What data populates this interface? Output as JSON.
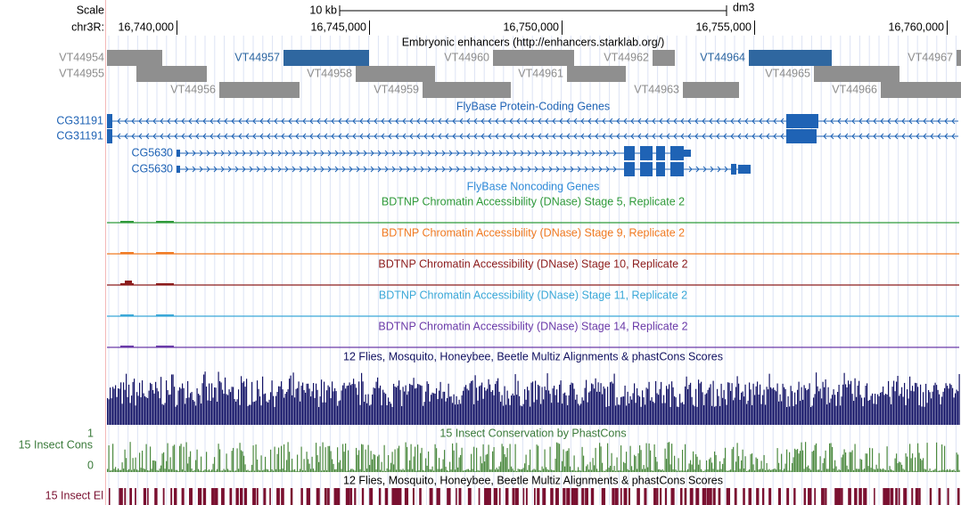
{
  "scale": {
    "label": "Scale",
    "bar_label": "10 kb",
    "assembly": "dm3"
  },
  "position": {
    "chrom": "chr3R:",
    "ticks": [
      "16,740,000",
      "16,745,000",
      "16,750,000",
      "16,755,000",
      "16,760,000"
    ]
  },
  "tracks": {
    "enhancers": {
      "title": "Embryonic enhancers (http://enhancers.starklab.org/)",
      "items": [
        "VT44954",
        "VT44957",
        "VT44960",
        "VT44962",
        "VT44964",
        "VT44967",
        "VT44955",
        "VT44958",
        "VT44961",
        "VT44965",
        "VT44956",
        "VT44959",
        "VT44963",
        "VT44966"
      ]
    },
    "genes": {
      "title": "FlyBase Protein-Coding Genes",
      "items": [
        "CG31191",
        "CG31191",
        "CG5630",
        "CG5630"
      ]
    },
    "noncoding": {
      "title": "FlyBase Noncoding Genes"
    },
    "dnase": [
      {
        "title": "BDTNP Chromatin Accessibility (DNase) Stage 5, Replicate 2",
        "color": "#2f9a3a"
      },
      {
        "title": "BDTNP Chromatin Accessibility (DNase) Stage 9, Replicate 2",
        "color": "#f07a22"
      },
      {
        "title": "BDTNP Chromatin Accessibility (DNase) Stage 10, Replicate 2",
        "color": "#8c1c1c"
      },
      {
        "title": "BDTNP Chromatin Accessibility (DNase) Stage 11, Replicate 2",
        "color": "#3aa8d8"
      },
      {
        "title": "BDTNP Chromatin Accessibility (DNase) Stage 14, Replicate 2",
        "color": "#6a3aa8"
      }
    ],
    "multiz": {
      "title": "12 Flies, Mosquito, Honeybee, Beetle Multiz Alignments & phastCons Scores"
    },
    "phastcons": {
      "title": "15 Insect Conservation by PhastCons",
      "label": "15 Insect Cons",
      "max": "1",
      "min": "0"
    },
    "elements": {
      "title": "12 Flies, Mosquito, Honeybee, Beetle Multiz Alignments & phastCons Scores",
      "label": "15 Insect El"
    }
  }
}
